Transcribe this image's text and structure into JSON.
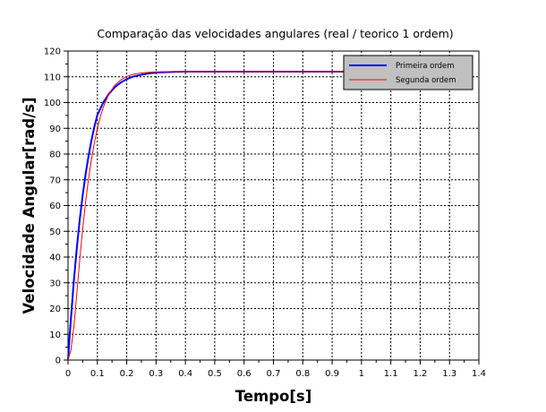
{
  "chart_data": {
    "type": "line",
    "title": "Comparação das velocidades angulares (real / teorico 1 ordem)",
    "xlabel": "Tempo[s]",
    "ylabel": "Velocidade Angular[rad/s]",
    "xlim": [
      0,
      1.4
    ],
    "ylim": [
      0,
      120
    ],
    "x_ticks": [
      0,
      0.1,
      0.2,
      0.3,
      0.4,
      0.5,
      0.6,
      0.7,
      0.8,
      0.9,
      1,
      1.1,
      1.2,
      1.3,
      1.4
    ],
    "x_tick_labels": [
      "0",
      "0.1",
      "0.2",
      "0.3",
      "0.4",
      "0.5",
      "0.6",
      "0.7",
      "0.8",
      "0.9",
      "1",
      "1.1",
      "1.2",
      "1.3",
      "1.4"
    ],
    "y_ticks": [
      0,
      10,
      20,
      30,
      40,
      50,
      60,
      70,
      80,
      90,
      100,
      110,
      120
    ],
    "y_tick_labels": [
      "0",
      "10",
      "20",
      "30",
      "40",
      "50",
      "60",
      "70",
      "80",
      "90",
      "100",
      "110",
      "120"
    ],
    "grid": true,
    "legend_position": "top-right",
    "series": [
      {
        "name": "Primeira ordem",
        "color": "#0000ff",
        "x": [
          0,
          0.005,
          0.01,
          0.02,
          0.03,
          0.04,
          0.05,
          0.06,
          0.07,
          0.08,
          0.09,
          0.1,
          0.12,
          0.14,
          0.16,
          0.18,
          0.2,
          0.22,
          0.25,
          0.28,
          0.3,
          0.33,
          0.36,
          0.4,
          0.45,
          0.5,
          0.55,
          0.6,
          0.65,
          0.7,
          0.75,
          0.8,
          0.85,
          0.9,
          0.95,
          1.0
        ],
        "y": [
          0,
          8.4,
          16.3,
          31,
          43.6,
          54.6,
          64.1,
          72.3,
          79.3,
          85.4,
          90.7,
          95.2,
          100,
          103.5,
          106,
          107.8,
          109.1,
          110,
          110.8,
          111.4,
          111.6,
          111.8,
          111.9,
          112,
          112,
          112,
          112,
          112,
          112,
          112,
          112,
          112,
          112,
          112,
          112,
          112
        ]
      },
      {
        "name": "Segunda ordem",
        "color": "#ff0000",
        "x": [
          0,
          0.01,
          0.02,
          0.03,
          0.04,
          0.05,
          0.06,
          0.07,
          0.08,
          0.09,
          0.1,
          0.11,
          0.12,
          0.14,
          0.16,
          0.18,
          0.2,
          0.22,
          0.25,
          0.28,
          0.3,
          0.33,
          0.36,
          0.4,
          0.45,
          0.5,
          0.55,
          0.6,
          0.65,
          0.7,
          0.75,
          0.8,
          0.85,
          0.9,
          0.95,
          1.0
        ],
        "y": [
          0,
          4,
          13,
          26,
          39,
          51,
          61.5,
          70.5,
          78,
          84.5,
          90,
          94.5,
          98.2,
          103.5,
          106.8,
          108.8,
          110.1,
          110.9,
          111.5,
          111.8,
          111.9,
          112,
          112,
          112,
          112,
          112,
          112,
          112,
          112,
          112,
          112,
          112,
          112,
          112,
          112,
          112
        ]
      }
    ]
  }
}
